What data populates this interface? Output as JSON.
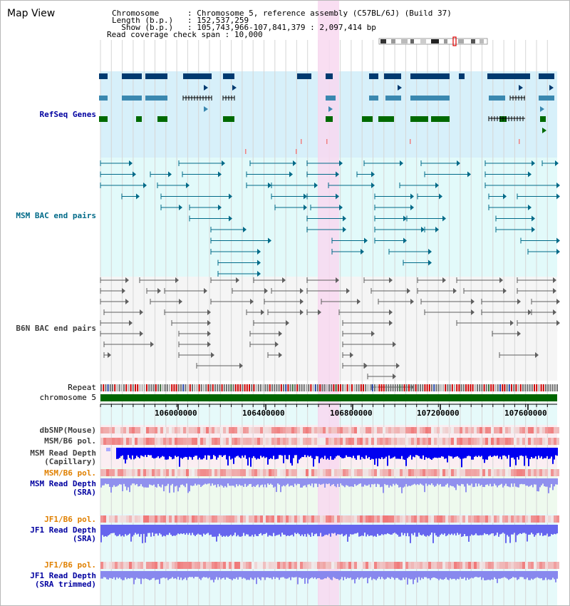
{
  "view_title": "Map View",
  "header": {
    "chromosome": {
      "label": "Chromosome     ",
      "value": "Chromosome 5, reference assembly (C57BL/6J) (Build 37)"
    },
    "length": {
      "label": "Length (b.p.)  ",
      "value": "152,537,259"
    },
    "show": {
      "label": "  Show (b.p.)  ",
      "value": "105,743,966-107,841,379 : 2,097,414 bp"
    },
    "span": {
      "label": "Read coverage check span",
      "value": "10,000"
    }
  },
  "tracks": {
    "refseq": "RefSeq Genes",
    "msm_bac": "MSM BAC end pairs",
    "b6n_bac": "B6N BAC end pairs",
    "repeat": "Repeat",
    "chromosome": "chromosome 5",
    "dbsnp": "dbSNP(Mouse)",
    "msm_b6_pol": "MSM/B6 pol.",
    "msm_read_depth_cap": "MSM Read Depth",
    "msm_read_depth_cap_sub": "(Capillary)",
    "msm_b6_pol2": "MSM/B6 pol.",
    "msm_read_depth_sra": "MSM Read Depth",
    "msm_read_depth_sra_sub": "(SRA)",
    "jf1_b6_pol": "JF1/B6 pol.",
    "jf1_read_depth": "JF1 Read Depth",
    "jf1_read_depth_sub": "(SRA)",
    "jf1_b6_pol2": "JF1/B6 pol.",
    "jf1_read_depth_trim": "JF1 Read Depth",
    "jf1_read_depth_trim_sub": "(SRA trimmed)"
  },
  "axis_ticks": [
    "106000000",
    "106400000",
    "106800000",
    "107200000",
    "107600000"
  ],
  "colors": {
    "refseq_bg": "#d7f0fa",
    "msm_bg": "#e2fafa",
    "b6n_bg": "#f5f5f5",
    "highlight": "#f8d8f0",
    "gene_dark": "#003a70",
    "gene_mid": "#3a88b0",
    "gene_green": "#006a00",
    "msm_line": "#006a88",
    "b6n_line": "#606060",
    "chrom_green": "#006600",
    "depth_blue": "#0000f0",
    "depth_light": "#7777ee",
    "label_blue": "#0000a0",
    "label_teal": "#006a88",
    "label_gray": "#404040",
    "label_orange": "#e08000"
  }
}
